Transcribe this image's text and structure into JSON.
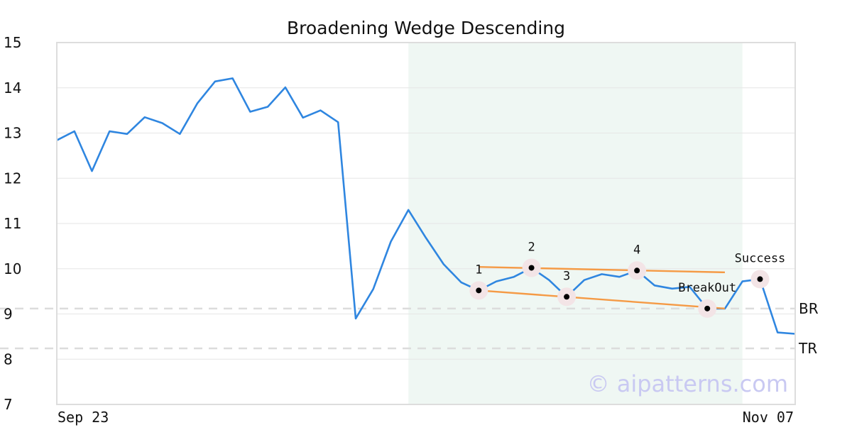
{
  "chart_data": {
    "type": "line",
    "title": "Broadening Wedge Descending",
    "ylim": [
      7,
      15
    ],
    "yticks": [
      "15",
      "14",
      "13",
      "12",
      "11",
      "10",
      "9",
      "8",
      "7"
    ],
    "ytick_values": [
      15,
      14,
      13,
      12,
      11,
      10,
      9,
      8,
      7
    ],
    "xlim": [
      0,
      42
    ],
    "xtick_labels": [
      "Sep 23",
      "Nov 07"
    ],
    "grid": true,
    "pattern_region": {
      "x_start": 20,
      "x_end": 39
    },
    "series": [
      {
        "color": "#2f86e0",
        "x": [
          0,
          1,
          2,
          3,
          4,
          5,
          6,
          7,
          8,
          9,
          10,
          11,
          12,
          13,
          14,
          15,
          16,
          17,
          18,
          19,
          20,
          21,
          22,
          23,
          24,
          25,
          26,
          27,
          28,
          29,
          30,
          31,
          32,
          33,
          34,
          35,
          36,
          37,
          38,
          39,
          40,
          41,
          42
        ],
        "values": [
          12.84,
          13.04,
          12.16,
          13.04,
          12.98,
          13.35,
          13.22,
          12.98,
          13.66,
          14.14,
          14.21,
          13.47,
          13.58,
          14.01,
          13.34,
          13.5,
          13.24,
          8.9,
          9.55,
          10.6,
          11.3,
          10.68,
          10.1,
          9.7,
          9.52,
          9.72,
          9.82,
          10.02,
          9.75,
          9.38,
          9.75,
          9.88,
          9.82,
          9.96,
          9.63,
          9.56,
          9.6,
          9.12,
          9.12,
          9.72,
          9.77,
          8.59,
          8.56
        ]
      }
    ],
    "trendlines": [
      {
        "color": "#f59a45",
        "from": [
          24,
          10.04
        ],
        "to": [
          38,
          9.92
        ]
      },
      {
        "color": "#f59a45",
        "from": [
          24,
          9.52
        ],
        "to": [
          38,
          9.12
        ]
      }
    ],
    "levels": [
      {
        "label": "BR",
        "value": 9.12
      },
      {
        "label": "TR",
        "value": 8.24
      }
    ],
    "points": [
      {
        "label": "1",
        "x": 24,
        "y": 9.52
      },
      {
        "label": "2",
        "x": 27,
        "y": 10.02
      },
      {
        "label": "3",
        "x": 29,
        "y": 9.38
      },
      {
        "label": "4",
        "x": 33,
        "y": 9.96
      },
      {
        "label": "BreakOut",
        "x": 37,
        "y": 9.12
      },
      {
        "label": "Success",
        "x": 40,
        "y": 9.77
      }
    ],
    "watermark": "© aipatterns.com"
  }
}
